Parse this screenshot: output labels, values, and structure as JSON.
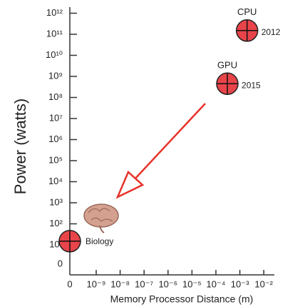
{
  "chart_data": {
    "type": "scatter",
    "x_label": "Memory Processor Distance (m)",
    "y_label": "Power (watts)",
    "log_x": true,
    "log_y": true,
    "xlim": [
      0,
      0.01
    ],
    "ylim": [
      0,
      1000000000000
    ],
    "xticks": [
      0,
      {
        "value": 1e-09,
        "label": "10⁻⁹"
      },
      {
        "value": 1e-08,
        "label": "10⁻⁸"
      },
      {
        "value": 1e-07,
        "label": "10⁻⁷"
      },
      {
        "value": 1e-06,
        "label": "10⁻⁶"
      },
      {
        "value": 1e-05,
        "label": "10⁻⁵"
      },
      {
        "value": 0.0001,
        "label": "10⁻⁴"
      },
      {
        "value": 0.001,
        "label": "10⁻³"
      },
      {
        "value": 0.01,
        "label": "10⁻²"
      }
    ],
    "yticks": [
      0,
      {
        "value": 10,
        "label": "10¹"
      },
      {
        "value": 100,
        "label": "10²"
      },
      {
        "value": 1000,
        "label": "10³"
      },
      {
        "value": 10000,
        "label": "10⁴"
      },
      {
        "value": 100000,
        "label": "10⁵"
      },
      {
        "value": 1000000,
        "label": "10⁶"
      },
      {
        "value": 10000000,
        "label": "10⁷"
      },
      {
        "value": 100000000,
        "label": "10⁸"
      },
      {
        "value": 1000000000,
        "label": "10⁹"
      },
      {
        "value": 10000000000,
        "label": "10¹⁰"
      },
      {
        "value": 100000000000,
        "label": "10¹¹"
      },
      {
        "value": 1000000000000,
        "label": "10¹²"
      }
    ],
    "color": "#e8444a",
    "points": [
      {
        "label": "CPU",
        "year": "2012",
        "x": 0.002,
        "y": 150000000000
      },
      {
        "label": "GPU",
        "year": "2015",
        "x": 0.0003,
        "y": 450000000
      },
      {
        "label": "Biology",
        "x": 0,
        "y": 15
      }
    ]
  }
}
